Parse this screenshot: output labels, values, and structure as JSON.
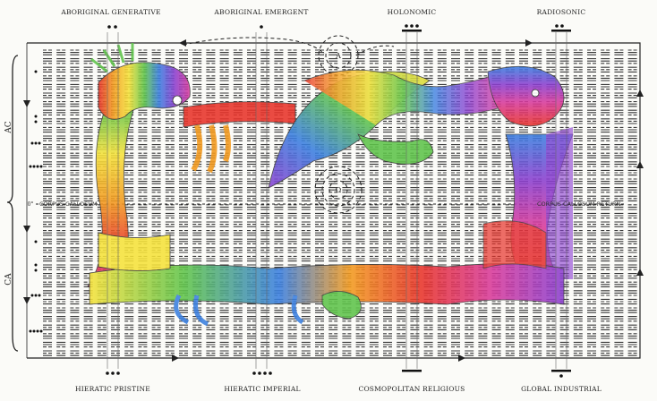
{
  "top_labels": [
    "ABORIGINAL GENERATIVE",
    "ABORIGINAL EMERGENT",
    "HOLONOMIC",
    "RADIOSONIC"
  ],
  "bottom_labels": [
    "HIERATIC PRISTINE",
    "HIERATIC IMPERIAL",
    "COSMOPOLITAN RELIGIOUS",
    "GLOBAL INDUSTRIAL"
  ],
  "side_labels": {
    "upper": "AC",
    "lower": "CA",
    "zero": "0°"
  },
  "corpus_callosum": "CORPUS CALLOSUM",
  "corpus_callosum_return": "CORPUS CALLOSUM RETURN",
  "markers": {
    "upper": "A",
    "lower": "Ω"
  },
  "colors": {
    "red": "#e8332a",
    "orange": "#f39a1e",
    "yellow": "#f6e23a",
    "green": "#5fc44a",
    "blue": "#3a7fe0",
    "violet": "#8a3fd0",
    "magenta": "#d83a9c",
    "ink": "#1a1a1a"
  }
}
